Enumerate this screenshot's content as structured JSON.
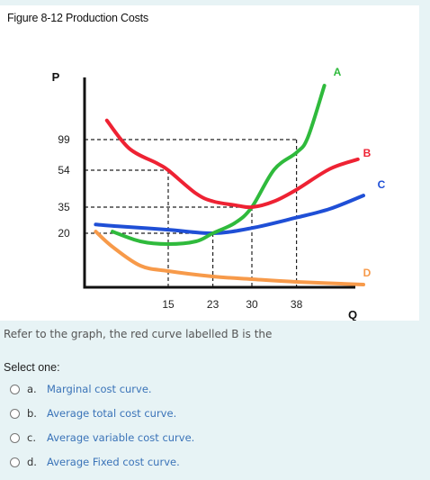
{
  "figure": {
    "title": "Figure 8-12 Production Costs"
  },
  "chart_data": {
    "type": "line",
    "title": "Figure 8-12 Production Costs",
    "ylabel": "P",
    "xlabel": "Q",
    "x_ticks": [
      "15",
      "23",
      "30",
      "38"
    ],
    "y_ticks": [
      "99",
      "54",
      "35",
      "20"
    ],
    "x_tick_values": [
      15,
      23,
      30,
      38
    ],
    "y_tick_values": [
      99,
      54,
      35,
      20
    ],
    "series": [
      {
        "name": "A",
        "color": "#2fba3c",
        "points": [
          [
            5,
            21
          ],
          [
            10,
            17
          ],
          [
            15,
            16
          ],
          [
            20,
            17
          ],
          [
            23,
            20
          ],
          [
            27,
            26
          ],
          [
            30,
            35
          ],
          [
            34,
            55
          ],
          [
            38,
            80
          ],
          [
            40,
            100
          ],
          [
            43,
            130
          ]
        ]
      },
      {
        "name": "B",
        "color": "#ee2233",
        "points": [
          [
            4,
            110
          ],
          [
            8,
            86
          ],
          [
            13,
            64
          ],
          [
            15,
            54
          ],
          [
            20,
            42
          ],
          [
            23,
            38
          ],
          [
            27,
            36
          ],
          [
            30,
            35
          ],
          [
            34,
            38
          ],
          [
            38,
            44
          ],
          [
            44,
            56
          ],
          [
            49,
            70
          ]
        ]
      },
      {
        "name": "C",
        "color": "#1f4fd6",
        "points": [
          [
            2,
            25
          ],
          [
            6,
            24
          ],
          [
            15,
            22
          ],
          [
            23,
            20
          ],
          [
            30,
            23
          ],
          [
            38,
            29
          ],
          [
            44,
            34
          ],
          [
            50,
            41
          ]
        ]
      },
      {
        "name": "D",
        "color": "#f79a4a",
        "points": [
          [
            2,
            21
          ],
          [
            5,
            15
          ],
          [
            10,
            8
          ],
          [
            15,
            6
          ],
          [
            23,
            4
          ],
          [
            30,
            3
          ],
          [
            38,
            2
          ],
          [
            50,
            1
          ]
        ]
      }
    ],
    "guides": [
      {
        "x": 15,
        "y": 54
      },
      {
        "x": 23,
        "y": 20
      },
      {
        "x": 30,
        "y": 35
      },
      {
        "x": 38,
        "y": 99
      }
    ],
    "grid": false,
    "legend": "inline"
  },
  "question": {
    "text": "Refer to the graph, the red curve labelled B is the"
  },
  "select_label": "Select one:",
  "options": [
    {
      "letter": "a.",
      "text": "Marginal cost curve."
    },
    {
      "letter": "b.",
      "text": "Average total cost curve."
    },
    {
      "letter": "c.",
      "text": "Average variable cost curve."
    },
    {
      "letter": "d.",
      "text": "Average Fixed cost curve."
    }
  ]
}
